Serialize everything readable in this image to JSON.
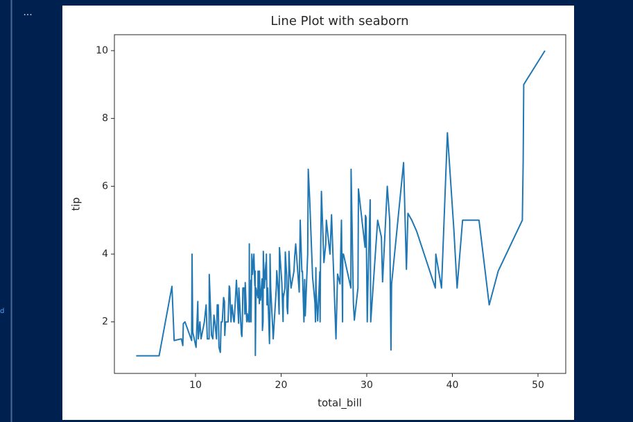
{
  "ui": {
    "ellipsis": "...",
    "side_label": "d"
  },
  "chart_data": {
    "type": "line",
    "title": "Line Plot with seaborn",
    "x_label": "total_bill",
    "y_label": "tip",
    "xlim": [
      0.53,
      53.24
    ],
    "ylim": [
      0.48,
      10.47
    ],
    "xticks": [
      10,
      20,
      30,
      40,
      50
    ],
    "yticks": [
      2,
      4,
      6,
      8,
      10
    ],
    "grid": false,
    "series": [
      {
        "name": "tip",
        "color": "#1f77b4",
        "x": [
          3.07,
          5.75,
          7.25,
          7.51,
          8.35,
          8.52,
          8.58,
          8.77,
          9.55,
          9.6,
          9.68,
          10.07,
          10.27,
          10.33,
          10.51,
          10.65,
          11.02,
          11.24,
          11.38,
          11.59,
          11.61,
          11.87,
          12.03,
          12.16,
          12.26,
          12.46,
          12.54,
          12.66,
          12.74,
          12.9,
          13.0,
          13.13,
          13.28,
          13.39,
          13.42,
          13.51,
          13.81,
          13.94,
          14.0,
          14.07,
          14.15,
          14.26,
          14.48,
          14.52,
          14.78,
          15.04,
          15.06,
          15.36,
          15.42,
          15.48,
          15.53,
          15.69,
          15.77,
          15.81,
          15.98,
          16.0,
          16.04,
          16.21,
          16.27,
          16.29,
          16.31,
          16.32,
          16.4,
          16.45,
          16.47,
          16.49,
          16.58,
          16.66,
          16.82,
          16.93,
          16.97,
          16.99,
          17.07,
          17.29,
          17.31,
          17.46,
          17.47,
          17.51,
          17.59,
          17.78,
          17.81,
          17.82,
          17.89,
          17.92,
          18.04,
          18.15,
          18.24,
          18.26,
          18.28,
          18.29,
          18.35,
          18.43,
          18.64,
          18.69,
          18.71,
          18.78,
          19.08,
          19.44,
          19.49,
          19.65,
          19.77,
          19.81,
          20.08,
          20.23,
          20.27,
          20.29,
          20.45,
          20.49,
          20.65,
          20.69,
          20.76,
          20.9,
          20.92,
          21.01,
          21.16,
          21.5,
          21.58,
          21.7,
          22.12,
          22.23,
          22.42,
          22.49,
          22.67,
          22.75,
          22.76,
          22.82,
          23.1,
          23.17,
          23.33,
          23.68,
          23.95,
          24.01,
          24.06,
          24.08,
          24.27,
          24.52,
          24.55,
          24.59,
          24.71,
          25.0,
          25.21,
          25.28,
          25.56,
          25.71,
          25.89,
          26.41,
          26.59,
          26.86,
          26.88,
          27.05,
          27.18,
          27.2,
          27.28,
          28.15,
          28.17,
          28.44,
          28.55,
          28.97,
          29.03,
          29.8,
          29.85,
          29.93,
          30.06,
          30.14,
          30.4,
          30.46,
          31.27,
          31.71,
          31.85,
          32.4,
          32.68,
          32.83,
          32.9,
          34.3,
          34.63,
          34.65,
          34.81,
          35.26,
          35.83,
          38.01,
          38.07,
          38.73,
          39.42,
          40.17,
          40.55,
          41.19,
          43.11,
          44.3,
          45.35,
          48.17,
          48.27,
          48.33,
          50.81
        ],
        "values": [
          1.0,
          1.0,
          3.05,
          1.45,
          1.5,
          1.3,
          1.95,
          2.0,
          1.45,
          4.0,
          1.7,
          1.25,
          2.6,
          1.5,
          2.0,
          1.5,
          1.98,
          2.5,
          1.5,
          1.5,
          3.4,
          1.6,
          1.5,
          2.2,
          2.0,
          1.5,
          2.5,
          2.5,
          1.25,
          1.1,
          2.0,
          2.0,
          2.72,
          2.6,
          1.6,
          2.0,
          2.0,
          3.06,
          3.0,
          2.5,
          2.0,
          2.5,
          2.0,
          2.0,
          3.23,
          1.96,
          3.0,
          1.64,
          1.57,
          2.02,
          3.0,
          3.0,
          2.23,
          3.16,
          2.03,
          2.0,
          2.24,
          2.0,
          2.5,
          4.3,
          2.0,
          3.0,
          2.5,
          2.47,
          3.23,
          2.0,
          4.0,
          3.4,
          4.0,
          3.07,
          3.5,
          1.01,
          3.0,
          2.71,
          3.5,
          2.54,
          3.5,
          3.0,
          2.64,
          3.27,
          2.34,
          1.75,
          2.0,
          4.08,
          3.0,
          3.5,
          3.76,
          3.25,
          4.0,
          3.76,
          2.5,
          3.0,
          1.36,
          2.31,
          4.0,
          3.0,
          1.5,
          3.0,
          3.51,
          3.0,
          2.23,
          4.19,
          3.15,
          2.01,
          2.83,
          2.75,
          3.0,
          4.06,
          3.35,
          2.45,
          2.24,
          3.5,
          4.08,
          3.5,
          3.0,
          3.5,
          3.92,
          4.3,
          2.88,
          5.0,
          3.48,
          3.5,
          2.0,
          3.25,
          3.0,
          2.18,
          4.0,
          6.5,
          5.65,
          3.31,
          2.55,
          2.0,
          3.6,
          2.92,
          2.03,
          3.48,
          2.0,
          3.61,
          5.85,
          3.75,
          4.29,
          5.0,
          4.34,
          4.0,
          5.16,
          1.5,
          3.41,
          3.14,
          3.12,
          5.0,
          2.0,
          4.0,
          4.0,
          3.0,
          6.5,
          2.56,
          2.05,
          3.0,
          5.92,
          4.2,
          5.14,
          5.07,
          2.0,
          3.09,
          5.6,
          2.0,
          5.0,
          4.5,
          3.18,
          6.0,
          5.0,
          1.17,
          3.11,
          6.7,
          3.55,
          3.68,
          5.2,
          5.0,
          4.67,
          3.0,
          4.0,
          3.0,
          7.58,
          4.73,
          3.0,
          5.0,
          5.0,
          2.5,
          3.5,
          5.0,
          6.73,
          9.0,
          10.0
        ]
      }
    ]
  }
}
